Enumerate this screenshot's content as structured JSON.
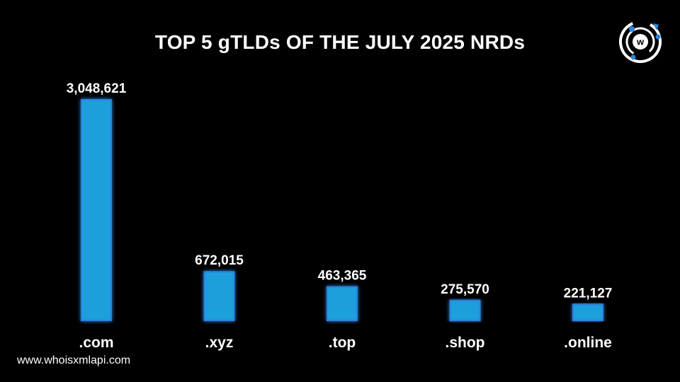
{
  "title": "TOP 5 gTLDs OF THE JULY 2025 NRDs",
  "footer": "www.whoisxmlapi.com",
  "colors": {
    "background": "#000000",
    "bar": "#1a9fdb",
    "bar_glow": "#2f7fe0",
    "text": "#ffffff",
    "logo_accent": "#2e86de"
  },
  "logo": {
    "icon": "whoisxmlapi-logo-icon",
    "letter": "w"
  },
  "chart_data": {
    "type": "bar",
    "categories": [
      ".com",
      ".xyz",
      ".top",
      ".shop",
      ".online"
    ],
    "values": [
      3048621,
      672015,
      463365,
      275570,
      221127
    ],
    "value_labels": [
      "3,048,621",
      "672,015",
      "463,365",
      "275,570",
      "221,127"
    ],
    "title": "TOP 5 gTLDs OF THE JULY 2025 NRDs",
    "xlabel": "",
    "ylabel": "",
    "ylim": [
      0,
      3048621
    ],
    "grid": false,
    "legend": "none"
  }
}
